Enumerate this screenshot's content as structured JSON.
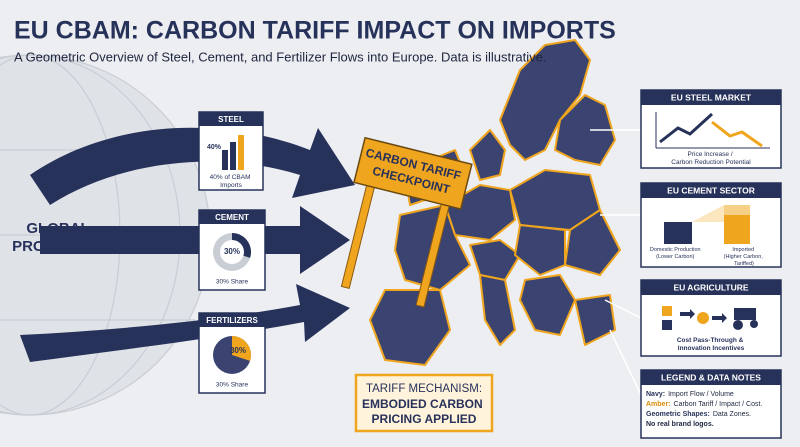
{
  "header": {
    "title": "EU CBAM: CARBON TARIFF IMPACT ON IMPORTS",
    "subtitle": "A Geometric Overview of Steel, Cement, and Fertilizer Flows into Europe. Data is illustrative."
  },
  "source": {
    "label_lines": [
      "GLOBAL",
      "PRODUCERS"
    ]
  },
  "flows": [
    {
      "name": "STEEL",
      "label": "40%",
      "caption_lines": [
        "40% of CBAM",
        "Imports"
      ]
    },
    {
      "name": "CEMENT",
      "share": {
        "value": 30,
        "label": "30%"
      },
      "caption": "30% Share"
    },
    {
      "name": "FERTILIZERS",
      "share": {
        "value": 30,
        "label": "30%"
      },
      "caption": "30% Share"
    }
  ],
  "checkpoint": {
    "lines": [
      "CARBON TARIFF",
      "CHECKPOINT"
    ]
  },
  "mechanism": {
    "heading": "TARIFF MECHANISM:",
    "lines": [
      "EMBODIED CARBON",
      "PRICING APPLIED"
    ]
  },
  "panels": [
    {
      "title": "EU STEEL MARKET",
      "caption_lines": [
        "Price Increase /",
        "Carbon Reduction Potential"
      ]
    },
    {
      "title": "EU CEMENT SECTOR",
      "left_lines": [
        "Domestic Production",
        "(Lower Carbon)"
      ],
      "right_lines": [
        "Imported",
        "(Higher Carbon,",
        "Tariffed)"
      ]
    },
    {
      "title": "EU AGRICULTURE",
      "caption_lines": [
        "Cost Pass-Through &",
        "Innovation Incentives"
      ]
    }
  ],
  "legend": {
    "title": "LEGEND & DATA NOTES",
    "items": [
      {
        "term": "Navy:",
        "text": "Import Flow / Volume"
      },
      {
        "term": "Amber:",
        "text": "Carbon Tariff / Impact / Cost."
      },
      {
        "term": "Geometric Shapes:",
        "text": "Data Zones."
      },
      {
        "term": "",
        "text": "No real brand logos."
      }
    ]
  }
}
